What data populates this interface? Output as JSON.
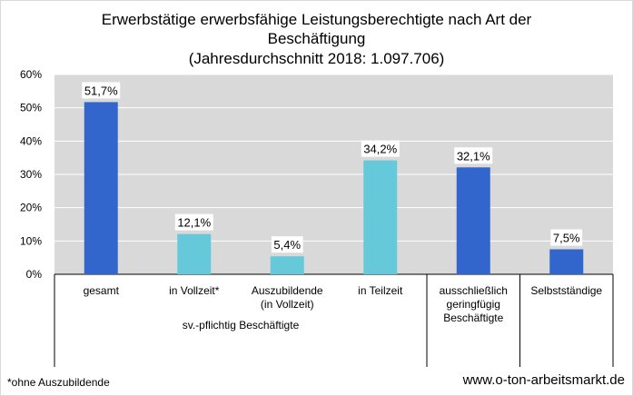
{
  "title_lines": [
    "Erwerbstätige erwerbsfähige Leistungsberechtigte nach Art der",
    "Beschäftigung",
    "(Jahresdurchschnitt 2018: 1.097.706)"
  ],
  "footnote": "*ohne Auszubildende",
  "source": "www.o-ton-arbeitsmarkt.de",
  "colors": {
    "dark_bar": "#3366cc",
    "light_bar": "#66c9d9",
    "plot_bg": "#d9d9d9",
    "grid": "#ffffff"
  },
  "chart_data": {
    "type": "bar",
    "title": "Erwerbstätige erwerbsfähige Leistungsberechtigte nach Art der Beschäftigung (Jahresdurchschnitt 2018: 1.097.706)",
    "categories": [
      [
        "gesamt"
      ],
      [
        "in Vollzeit*"
      ],
      [
        "Auszubildende",
        "(in Vollzeit)"
      ],
      [
        "in Teilzeit"
      ],
      [
        "ausschließlich",
        "geringfügig",
        "Beschäftigte"
      ],
      [
        "Selbstständige"
      ]
    ],
    "values": [
      51.7,
      12.1,
      5.4,
      34.2,
      32.1,
      7.5
    ],
    "value_labels": [
      "51,7%",
      "12,1%",
      "5,4%",
      "34,2%",
      "32,1%",
      "7,5%"
    ],
    "bar_colors": [
      "dark",
      "light",
      "light",
      "light",
      "dark",
      "dark"
    ],
    "group_label": "sv.-pflichtig Beschäftigte",
    "y_ticks": [
      "0%",
      "10%",
      "20%",
      "30%",
      "40%",
      "50%",
      "60%"
    ],
    "ylim": [
      0,
      60
    ],
    "grid": true,
    "legend": false
  }
}
